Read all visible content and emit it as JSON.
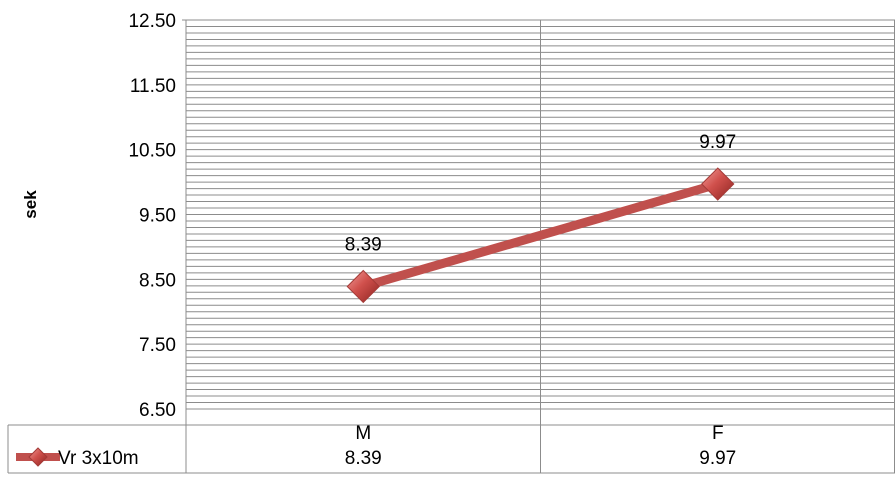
{
  "chart_data": {
    "type": "line",
    "ylabel": "sek",
    "ylim": [
      6.5,
      12.5
    ],
    "y_ticks": [
      "12.50",
      "11.50",
      "10.50",
      "9.50",
      "8.50",
      "7.50",
      "6.50"
    ],
    "y_minor_step": 0.1,
    "grid": true,
    "categories": [
      "M",
      "F"
    ],
    "series": [
      {
        "name": "Vr 3x10m",
        "values": [
          8.39,
          9.97
        ],
        "labels": [
          "8.39",
          "9.97"
        ],
        "color": "#c0504d"
      }
    ],
    "legend": "data-table-below"
  }
}
